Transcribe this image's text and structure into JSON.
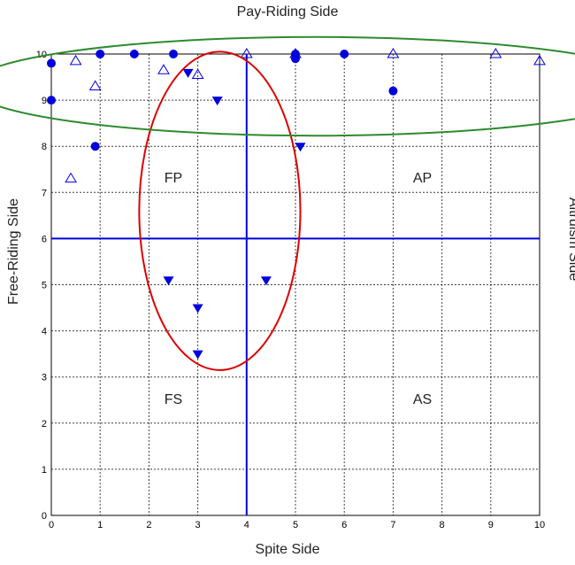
{
  "chart_data": {
    "type": "scatter",
    "xlabel": "Spite Side",
    "ylabel": "Free-Riding Side",
    "top_label": "Pay-Riding Side",
    "right_label": "Altruism Side",
    "xlim": [
      0,
      10
    ],
    "ylim": [
      0,
      10
    ],
    "x_ticks": [
      "0",
      "1",
      "2",
      "3",
      "4",
      "5",
      "6",
      "7",
      "8",
      "9",
      "10"
    ],
    "y_ticks": [
      "0",
      "1",
      "2",
      "3",
      "4",
      "5",
      "6",
      "7",
      "8",
      "9",
      "10"
    ],
    "grid": true,
    "reference_lines": {
      "x": 4,
      "y": 6
    },
    "quadrant_labels": [
      {
        "text": "FP",
        "x": 2.5,
        "y": 7.3
      },
      {
        "text": "AP",
        "x": 7.6,
        "y": 7.3
      },
      {
        "text": "FS",
        "x": 2.5,
        "y": 2.5
      },
      {
        "text": "AS",
        "x": 7.6,
        "y": 2.5
      }
    ],
    "series": [
      {
        "marker": "filled-circle",
        "color": "#0000dd",
        "points": [
          [
            0,
            9.8
          ],
          [
            0,
            9.0
          ],
          [
            1,
            10.0
          ],
          [
            1.7,
            10.0
          ],
          [
            2.5,
            10.0
          ],
          [
            5,
            10.0
          ],
          [
            5,
            9.9
          ],
          [
            6,
            10.0
          ],
          [
            7,
            9.2
          ],
          [
            0.9,
            8.0
          ]
        ]
      },
      {
        "marker": "open-triangle-up",
        "color": "#0000dd",
        "points": [
          [
            0.5,
            9.85
          ],
          [
            0.9,
            9.3
          ],
          [
            2.3,
            9.65
          ],
          [
            3.0,
            9.55
          ],
          [
            4.0,
            10.0
          ],
          [
            5.0,
            10.0
          ],
          [
            7.0,
            10.0
          ],
          [
            9.1,
            10.0
          ],
          [
            10.0,
            9.85
          ],
          [
            0.4,
            7.3
          ]
        ]
      },
      {
        "marker": "filled-triangle-down",
        "color": "#0000dd",
        "points": [
          [
            2.8,
            9.6
          ],
          [
            3.4,
            9.0
          ],
          [
            5.1,
            8.0
          ],
          [
            2.4,
            5.1
          ],
          [
            4.4,
            5.1
          ],
          [
            3.0,
            4.5
          ],
          [
            3.0,
            3.5
          ]
        ]
      }
    ],
    "annotations": [
      {
        "shape": "ellipse",
        "color": "#dd0000",
        "cx": 3.45,
        "cy": 6.6,
        "rx": 1.65,
        "ry": 3.45
      },
      {
        "shape": "ellipse",
        "color": "#2e8b2e",
        "cx": 5.4,
        "cy": 9.3,
        "rx": 7.08,
        "ry": 1.07
      }
    ]
  }
}
